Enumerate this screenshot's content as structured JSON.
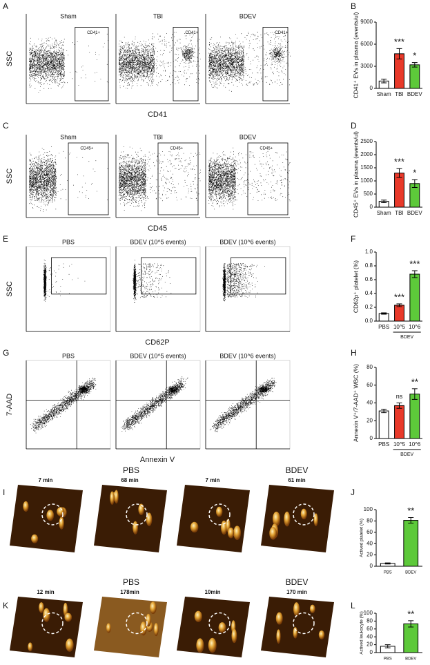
{
  "panel_letters": [
    "A",
    "B",
    "C",
    "D",
    "E",
    "F",
    "G",
    "H",
    "I",
    "J",
    "K",
    "L"
  ],
  "flow": [
    {
      "titles": [
        "Sham",
        "TBI",
        "BDEV"
      ],
      "gate": "CD41+",
      "ylabel": "SSC",
      "xlabel": "CD41"
    },
    {
      "titles": [
        "Sham",
        "TBI",
        "BDEV"
      ],
      "gate": "CD45+",
      "ylabel": "SSC",
      "xlabel": "CD45"
    },
    {
      "titles": [
        "PBS",
        "BDEV (10^5 events)",
        "BDEV (10^6 events)"
      ],
      "ylabel": "SSC",
      "xlabel": "CD62P"
    },
    {
      "titles": [
        "PBS",
        "BDEV (10^5 events)",
        "BDEV (10^6 events)"
      ],
      "ylabel": "7-AAD",
      "xlabel": "Annexin V"
    }
  ],
  "afm": [
    {
      "groups": [
        "PBS",
        "BDEV"
      ],
      "times": [
        "7 min",
        "68 min",
        "7 min",
        "61 min"
      ]
    },
    {
      "groups": [
        "PBS",
        "BDEV"
      ],
      "times": [
        "12 min",
        "178min",
        "10min",
        "170 min"
      ]
    }
  ],
  "chart_data": [
    {
      "type": "bar",
      "ylabel": "CD41⁺ EVs in plasma (events/ul)",
      "categories": [
        "Sham",
        "TBI",
        "BDEV"
      ],
      "values": [
        1000,
        4700,
        3200
      ],
      "errors": [
        250,
        700,
        300
      ],
      "colors": [
        "#ffffff",
        "#e8392a",
        "#5dc93a"
      ],
      "annotations": [
        null,
        "***",
        "*"
      ],
      "ylim": [
        0,
        9000
      ],
      "yticks": [
        0,
        3000,
        6000,
        9000
      ]
    },
    {
      "type": "bar",
      "ylabel": "CD45⁺ EVs in plasma (events/ul)",
      "categories": [
        "Sham",
        "TBI",
        "BDEV"
      ],
      "values": [
        220,
        1300,
        900
      ],
      "errors": [
        50,
        170,
        150
      ],
      "colors": [
        "#ffffff",
        "#e8392a",
        "#5dc93a"
      ],
      "annotations": [
        null,
        "***",
        "*"
      ],
      "ylim": [
        0,
        2500
      ],
      "yticks": [
        0,
        500,
        1000,
        1500,
        2000,
        2500
      ]
    },
    {
      "type": "bar",
      "ylabel": "CD62p⁺ platelet (%)",
      "categories": [
        "PBS",
        "10^5",
        "10^6"
      ],
      "group_label": "BDEV",
      "values": [
        0.11,
        0.23,
        0.68
      ],
      "errors": [
        0.01,
        0.02,
        0.05
      ],
      "colors": [
        "#ffffff",
        "#e8392a",
        "#5dc93a"
      ],
      "annotations": [
        null,
        "***",
        "***"
      ],
      "ylim": [
        0,
        1.0
      ],
      "yticks": [
        {
          "value": 0,
          "label": "0.0"
        },
        0.2,
        0.4,
        0.6,
        0.8,
        {
          "value": 1,
          "label": "1.0"
        }
      ]
    },
    {
      "type": "bar",
      "ylabel": "Annexin V⁺/7-AAD⁺ WBC (%)",
      "categories": [
        "PBS",
        "10^5",
        "10^6"
      ],
      "group_label": "BDEV",
      "values": [
        31,
        37,
        50
      ],
      "errors": [
        2,
        3,
        6
      ],
      "colors": [
        "#ffffff",
        "#e8392a",
        "#5dc93a"
      ],
      "annotations": [
        null,
        "ns",
        "**"
      ],
      "ylim": [
        0,
        80
      ],
      "yticks": [
        0,
        20,
        40,
        60,
        80
      ]
    },
    {
      "type": "bar",
      "ylabel": "Actived platelet (%)",
      "categories": [
        "PBS",
        "BDEV"
      ],
      "values": [
        5,
        81
      ],
      "errors": [
        1,
        5
      ],
      "colors": [
        "#ffffff",
        "#5dc93a"
      ],
      "annotations": [
        null,
        "**"
      ],
      "ylim": [
        0,
        100
      ],
      "yticks": [
        0,
        20,
        40,
        60,
        80,
        100
      ]
    },
    {
      "type": "bar",
      "ylabel": "Actived leukocyte (%)",
      "categories": [
        "PBS",
        "BDEV"
      ],
      "values": [
        16,
        73
      ],
      "errors": [
        4,
        8
      ],
      "colors": [
        "#ffffff",
        "#5dc93a"
      ],
      "annotations": [
        null,
        "**"
      ],
      "ylim": [
        0,
        100
      ],
      "yticks": [
        0,
        20,
        40,
        60,
        80,
        100
      ]
    }
  ]
}
